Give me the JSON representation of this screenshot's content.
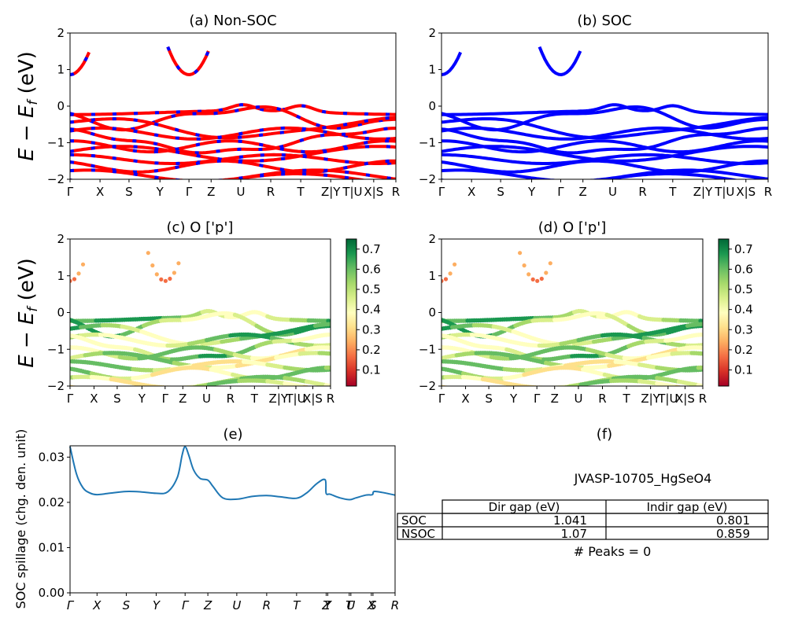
{
  "chart_data": [
    {
      "panel": "a",
      "type": "line",
      "title": "(a) Non-SOC",
      "ylabel": "E − E_f (eV)",
      "ylim": [
        -2,
        2
      ],
      "yticks": [
        "2",
        "1",
        "0",
        "−1",
        "−2"
      ],
      "xticks": [
        "Γ",
        "X",
        "S",
        "Y",
        "Γ",
        "Z",
        "U",
        "R",
        "T",
        "Z|Y",
        "T|U",
        "X|S",
        "R"
      ],
      "kpath": [
        0,
        0.092,
        0.181,
        0.276,
        0.365,
        0.433,
        0.524,
        0.616,
        0.708,
        0.8,
        0.867,
        0.932,
        1.0
      ],
      "colors": {
        "line": "#ff0000",
        "dash": "#0000ff"
      },
      "conduction_band_min": 0.859
    },
    {
      "panel": "b",
      "type": "line",
      "title": "(b) SOC",
      "ylim": [
        -2,
        2
      ],
      "yticks": [
        "2",
        "1",
        "0",
        "−1",
        "−2"
      ],
      "xticks": [
        "Γ",
        "X",
        "S",
        "Y",
        "Γ",
        "Z",
        "U",
        "R",
        "T",
        "Z|Y",
        "T|U",
        "X|S",
        "R"
      ],
      "colors": {
        "line": "#0000ff"
      },
      "conduction_band_min": 0.801
    },
    {
      "panel": "c",
      "type": "scatter",
      "title": "(c)  O ['p']",
      "ylabel": "E − E_f (eV)",
      "ylim": [
        -2,
        2
      ],
      "yticks": [
        "2",
        "1",
        "0",
        "−1",
        "−2"
      ],
      "xticks": [
        "Γ",
        "X",
        "S",
        "Y",
        "Γ",
        "Z",
        "U",
        "R",
        "T",
        "Z|Y",
        "T|U",
        "X|S",
        "R"
      ],
      "colorbar": {
        "range": [
          0.02,
          0.75
        ],
        "ticks": [
          "0.7",
          "0.6",
          "0.5",
          "0.4",
          "0.3",
          "0.2",
          "0.1"
        ],
        "colormap": "RdYlGn"
      }
    },
    {
      "panel": "d",
      "type": "scatter",
      "title": "(d) O ['p']",
      "ylim": [
        -2,
        2
      ],
      "yticks": [
        "2",
        "1",
        "0",
        "−1",
        "−2"
      ],
      "xticks": [
        "Γ",
        "X",
        "S",
        "Y",
        "Γ",
        "Z",
        "U",
        "R",
        "T",
        "Z|Y",
        "T|U",
        "X|S",
        "R"
      ],
      "colorbar": {
        "range": [
          0.02,
          0.75
        ],
        "ticks": [
          "0.7",
          "0.6",
          "0.5",
          "0.4",
          "0.3",
          "0.2",
          "0.1"
        ],
        "colormap": "RdYlGn"
      }
    },
    {
      "panel": "e",
      "type": "line",
      "title": "(e)",
      "ylabel": "SOC spillage (chg. den. unit)",
      "ylim": [
        0,
        0.0325
      ],
      "yticks": [
        "0.03",
        "0.02",
        "0.01",
        "0.00"
      ],
      "xticks": [
        "Γ",
        "X",
        "S",
        "Y",
        "Γ",
        "Z",
        "U",
        "R",
        "T",
        "Z",
        "Y",
        "T",
        "U",
        "X",
        "S",
        "R"
      ],
      "kpath": [
        0,
        0.083,
        0.173,
        0.265,
        0.354,
        0.424,
        0.513,
        0.605,
        0.697,
        0.788,
        0.793,
        0.859,
        0.864,
        0.927,
        0.932,
        1.0
      ],
      "colors": {
        "line": "#1f77b4"
      },
      "x": [
        0,
        0.02,
        0.04,
        0.06,
        0.083,
        0.12,
        0.173,
        0.22,
        0.265,
        0.3,
        0.33,
        0.345,
        0.354,
        0.365,
        0.38,
        0.4,
        0.424,
        0.44,
        0.47,
        0.513,
        0.56,
        0.605,
        0.65,
        0.697,
        0.73,
        0.76,
        0.785,
        0.788,
        0.8,
        0.83,
        0.86,
        0.88,
        0.91,
        0.93,
        0.935,
        0.96,
        1.0
      ],
      "y": [
        0.0323,
        0.0262,
        0.0232,
        0.0221,
        0.0217,
        0.022,
        0.0224,
        0.0223,
        0.022,
        0.0223,
        0.0255,
        0.0305,
        0.0323,
        0.0305,
        0.0272,
        0.0253,
        0.0249,
        0.0235,
        0.021,
        0.0207,
        0.0213,
        0.0215,
        0.0212,
        0.0209,
        0.0222,
        0.0242,
        0.025,
        0.022,
        0.0218,
        0.021,
        0.0206,
        0.021,
        0.0216,
        0.0217,
        0.0224,
        0.0222,
        0.0216
      ]
    }
  ],
  "panel_f": {
    "title": "(f)",
    "material": "JVASP-10705_HgSeO4",
    "table": {
      "columns": [
        "Dir gap (eV)",
        "Indir gap (eV)"
      ],
      "rows": [
        {
          "label": "SOC",
          "values": [
            "1.041",
            "0.801"
          ]
        },
        {
          "label": "NSOC",
          "values": [
            "1.07",
            "0.859"
          ]
        }
      ]
    },
    "peaks": "# Peaks = 0"
  }
}
